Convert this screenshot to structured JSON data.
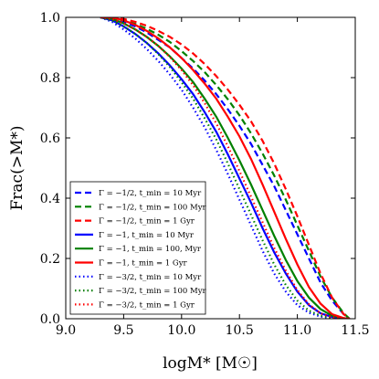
{
  "chart_data": {
    "type": "line",
    "title": "",
    "xlabel": "logM* [M☉]",
    "ylabel": "Frac(>M*)",
    "xlim": [
      9.0,
      11.5
    ],
    "ylim": [
      0.0,
      1.0
    ],
    "xticks": [
      9.0,
      9.5,
      10.0,
      10.5,
      11.0,
      11.5
    ],
    "yticks": [
      0.0,
      0.2,
      0.4,
      0.6,
      0.8,
      1.0
    ],
    "xtick_labels": [
      "9.0",
      "9.5",
      "10.0",
      "10.5",
      "11.0",
      "11.5"
    ],
    "ytick_labels": [
      "0.0",
      "0.2",
      "0.4",
      "0.6",
      "0.8",
      "1.0"
    ],
    "grid": false,
    "legend_position": "lower-left",
    "series": [
      {
        "name": "Γ = −1/2, t_min = 10 Myr",
        "color": "#0000ff",
        "style": "dashed",
        "x": [
          9.3,
          9.4,
          9.5,
          9.6,
          9.7,
          9.8,
          9.9,
          10.0,
          10.1,
          10.2,
          10.3,
          10.4,
          10.5,
          10.6,
          10.7,
          10.8,
          10.9,
          11.0,
          11.1,
          11.2,
          11.3,
          11.4,
          11.45
        ],
        "y": [
          1.0,
          0.995,
          0.985,
          0.97,
          0.95,
          0.925,
          0.9,
          0.865,
          0.83,
          0.79,
          0.745,
          0.695,
          0.64,
          0.58,
          0.51,
          0.44,
          0.36,
          0.28,
          0.2,
          0.12,
          0.06,
          0.015,
          0.0
        ]
      },
      {
        "name": "Γ = −1/2, t_min = 100 Myr",
        "color": "#008000",
        "style": "dashed",
        "x": [
          9.3,
          9.4,
          9.5,
          9.6,
          9.7,
          9.8,
          9.9,
          10.0,
          10.1,
          10.2,
          10.3,
          10.4,
          10.5,
          10.6,
          10.7,
          10.8,
          10.9,
          11.0,
          11.1,
          11.2,
          11.3,
          11.4,
          11.45
        ],
        "y": [
          1.0,
          0.997,
          0.99,
          0.978,
          0.962,
          0.942,
          0.918,
          0.888,
          0.855,
          0.818,
          0.775,
          0.728,
          0.675,
          0.615,
          0.548,
          0.475,
          0.395,
          0.31,
          0.225,
          0.14,
          0.07,
          0.018,
          0.0
        ]
      },
      {
        "name": "Γ = −1/2, t_min = 1 Gyr",
        "color": "#ff0000",
        "style": "dashed",
        "x": [
          9.3,
          9.4,
          9.5,
          9.6,
          9.7,
          9.8,
          9.9,
          10.0,
          10.1,
          10.2,
          10.3,
          10.4,
          10.5,
          10.6,
          10.7,
          10.8,
          10.9,
          11.0,
          11.1,
          11.2,
          11.3,
          11.4,
          11.45
        ],
        "y": [
          1.0,
          1.0,
          0.995,
          0.985,
          0.972,
          0.955,
          0.935,
          0.91,
          0.88,
          0.845,
          0.805,
          0.76,
          0.71,
          0.655,
          0.59,
          0.515,
          0.43,
          0.34,
          0.245,
          0.15,
          0.07,
          0.015,
          0.0
        ]
      },
      {
        "name": "Γ = −1, t_min = 10 Myr",
        "color": "#0000ff",
        "style": "solid",
        "x": [
          9.3,
          9.4,
          9.5,
          9.6,
          9.7,
          9.8,
          9.9,
          10.0,
          10.1,
          10.2,
          10.3,
          10.4,
          10.5,
          10.6,
          10.7,
          10.8,
          10.9,
          11.0,
          11.1,
          11.2,
          11.3,
          11.4,
          11.45
        ],
        "y": [
          1.0,
          0.99,
          0.97,
          0.945,
          0.915,
          0.88,
          0.84,
          0.795,
          0.745,
          0.685,
          0.62,
          0.545,
          0.465,
          0.385,
          0.3,
          0.22,
          0.15,
          0.09,
          0.045,
          0.018,
          0.006,
          0.001,
          0.0
        ]
      },
      {
        "name": "Γ = −1, t_min = 100, Myr",
        "color": "#008000",
        "style": "solid",
        "x": [
          9.3,
          9.4,
          9.5,
          9.6,
          9.7,
          9.8,
          9.9,
          10.0,
          10.1,
          10.2,
          10.3,
          10.4,
          10.5,
          10.6,
          10.7,
          10.8,
          10.9,
          11.0,
          11.1,
          11.2,
          11.3,
          11.4,
          11.45
        ],
        "y": [
          1.0,
          0.995,
          0.98,
          0.96,
          0.935,
          0.905,
          0.87,
          0.83,
          0.785,
          0.73,
          0.67,
          0.6,
          0.525,
          0.445,
          0.36,
          0.275,
          0.195,
          0.125,
          0.07,
          0.032,
          0.01,
          0.002,
          0.0
        ]
      },
      {
        "name": "Γ = −1, t_min = 1 Gyr",
        "color": "#ff0000",
        "style": "solid",
        "x": [
          9.3,
          9.4,
          9.5,
          9.6,
          9.7,
          9.8,
          9.9,
          10.0,
          10.1,
          10.2,
          10.3,
          10.4,
          10.5,
          10.6,
          10.7,
          10.8,
          10.9,
          11.0,
          11.1,
          11.2,
          11.3,
          11.4,
          11.45
        ],
        "y": [
          1.0,
          1.0,
          0.99,
          0.975,
          0.955,
          0.93,
          0.9,
          0.865,
          0.825,
          0.78,
          0.73,
          0.67,
          0.605,
          0.53,
          0.445,
          0.355,
          0.265,
          0.18,
          0.105,
          0.05,
          0.015,
          0.002,
          0.0
        ]
      },
      {
        "name": "Γ = −3/2, t_min = 10 Myr",
        "color": "#0000ff",
        "style": "dotted",
        "x": [
          9.3,
          9.4,
          9.5,
          9.6,
          9.7,
          9.8,
          9.9,
          10.0,
          10.1,
          10.2,
          10.3,
          10.4,
          10.5,
          10.6,
          10.7,
          10.8,
          10.9,
          11.0,
          11.1,
          11.2,
          11.3,
          11.4,
          11.45
        ],
        "y": [
          1.0,
          0.985,
          0.96,
          0.93,
          0.895,
          0.855,
          0.81,
          0.76,
          0.7,
          0.635,
          0.56,
          0.48,
          0.395,
          0.31,
          0.225,
          0.15,
          0.09,
          0.045,
          0.02,
          0.007,
          0.002,
          0.0,
          0.0
        ]
      },
      {
        "name": "Γ = −3/2, t_min = 100 Myr",
        "color": "#008000",
        "style": "dotted",
        "x": [
          9.3,
          9.4,
          9.5,
          9.6,
          9.7,
          9.8,
          9.9,
          10.0,
          10.1,
          10.2,
          10.3,
          10.4,
          10.5,
          10.6,
          10.7,
          10.8,
          10.9,
          11.0,
          11.1,
          11.2,
          11.3,
          11.4,
          11.45
        ],
        "y": [
          1.0,
          0.99,
          0.97,
          0.945,
          0.915,
          0.878,
          0.835,
          0.785,
          0.73,
          0.665,
          0.595,
          0.515,
          0.43,
          0.345,
          0.26,
          0.18,
          0.112,
          0.06,
          0.027,
          0.01,
          0.003,
          0.0,
          0.0
        ]
      },
      {
        "name": "Γ = −3/2, t_min = 1 Gyr",
        "color": "#ff0000",
        "style": "dotted",
        "x": [
          9.3,
          9.4,
          9.5,
          9.6,
          9.7,
          9.8,
          9.9,
          10.0,
          10.1,
          10.2,
          10.3,
          10.4,
          10.5,
          10.6,
          10.7,
          10.8,
          10.9,
          11.0,
          11.1,
          11.2,
          11.3,
          11.4,
          11.45
        ],
        "y": [
          1.0,
          0.995,
          0.98,
          0.96,
          0.935,
          0.905,
          0.868,
          0.825,
          0.775,
          0.715,
          0.648,
          0.572,
          0.49,
          0.405,
          0.32,
          0.235,
          0.16,
          0.095,
          0.048,
          0.018,
          0.005,
          0.001,
          0.0
        ]
      }
    ]
  }
}
